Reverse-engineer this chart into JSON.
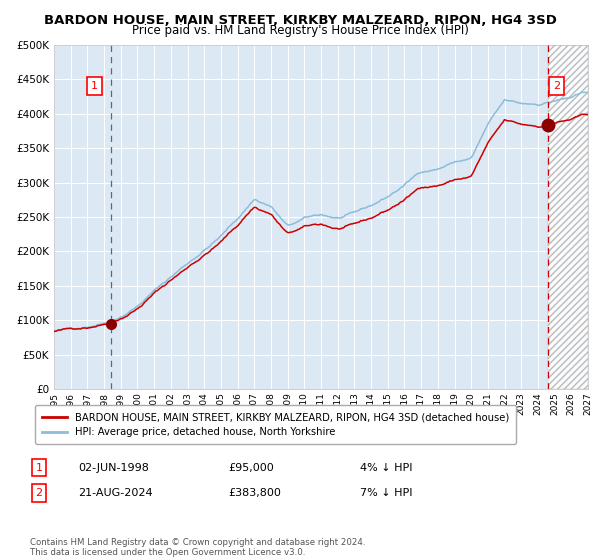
{
  "title": "BARDON HOUSE, MAIN STREET, KIRKBY MALZEARD, RIPON, HG4 3SD",
  "subtitle": "Price paid vs. HM Land Registry's House Price Index (HPI)",
  "background_color": "#dce9f5",
  "plot_bg_color": "#dce9f5",
  "hpi_color": "#8bbcda",
  "property_color": "#cc0000",
  "marker_color": "#8b0000",
  "legend_label_property": "BARDON HOUSE, MAIN STREET, KIRKBY MALZEARD, RIPON, HG4 3SD (detached house)",
  "legend_label_hpi": "HPI: Average price, detached house, North Yorkshire",
  "sale1_date": "02-JUN-1998",
  "sale1_price": "£95,000",
  "sale1_hpi": "4% ↓ HPI",
  "sale2_date": "21-AUG-2024",
  "sale2_price": "£383,800",
  "sale2_hpi": "7% ↓ HPI",
  "footer": "Contains HM Land Registry data © Crown copyright and database right 2024.\nThis data is licensed under the Open Government Licence v3.0.",
  "sale1_year": 1998.42,
  "sale2_year": 2024.63,
  "sale1_value": 95000,
  "sale2_value": 383800,
  "xmin": 1995,
  "xmax": 2027,
  "ymin": 0,
  "ymax": 500000
}
